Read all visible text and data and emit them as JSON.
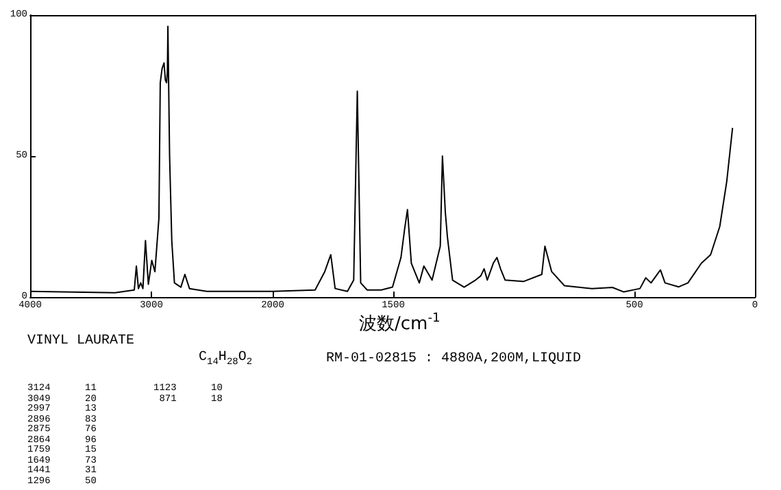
{
  "chart_data": [
    {
      "type": "line",
      "annotations": [
        "VINYL LAURATE",
        "C$_{14}$H$_{28}$O$_{2}$",
        "RM-01-02815 : 4880A,200M,LIQUID",
        "3124      11",
        "3049      20",
        "2997      13",
        "2896      83",
        "2875      76",
        "2864      96",
        "1759      15",
        "1649      73",
        "1441      31",
        "1296      50",
        "1123      10",
        " 871      18"
      ],
      "x": [
        4000,
        3300,
        3141,
        3124,
        3107,
        3088,
        3070,
        3049,
        3025,
        2997,
        2971,
        2938,
        2927,
        2912,
        2896,
        2885,
        2875,
        2868,
        2864,
        2850,
        2832,
        2810,
        2757,
        2724,
        2686,
        2543,
        2000
      ],
      "values": [
        2,
        1.5,
        2.5,
        11,
        3,
        5,
        3,
        20,
        4.5,
        13,
        9,
        28,
        76,
        81,
        83,
        77,
        76,
        80,
        96,
        50,
        20,
        5,
        3.5,
        8,
        3,
        2,
        2
      ],
      "color": "#000000",
      "xlim": [
        4000,
        2000
      ],
      "xticks": [
        4000,
        3000,
        2000
      ],
      "ylim": [
        0,
        100
      ],
      "yticks": [
        0,
        50,
        100
      ],
      "grid": false,
      "marker": "none",
      "line_style": "solid"
    },
    {
      "type": "line",
      "xlabel": "波数/cm$^{-1}$",
      "x": [
        2000,
        1824,
        1784,
        1759,
        1741,
        1690,
        1664,
        1649,
        1635,
        1608,
        1550,
        1503,
        1468,
        1453,
        1441,
        1425,
        1411,
        1392,
        1373,
        1339,
        1305,
        1296,
        1284,
        1275,
        1254,
        1206,
        1159,
        1137,
        1123,
        1110,
        1085,
        1070,
        1055,
        1036,
        960,
        884,
        871,
        843,
        790,
        676,
        591,
        544,
        477,
        453,
        431,
        392,
        373,
        316,
        278,
        222,
        184,
        146,
        117,
        93
      ],
      "values": [
        2,
        2.5,
        9,
        15,
        3,
        2,
        6,
        73,
        5,
        2.5,
        2.5,
        3.5,
        14,
        24,
        31,
        12,
        9,
        5,
        11,
        6,
        18,
        50,
        30,
        21,
        6,
        3.5,
        6,
        7.5,
        10,
        6,
        12,
        14,
        10,
        6,
        5.5,
        8,
        18,
        9,
        4,
        3,
        3.4,
        1.8,
        3,
        6.8,
        5,
        9.6,
        5,
        3.6,
        5,
        12,
        15,
        25,
        41,
        60
      ],
      "color": "#000000",
      "xlim": [
        2000,
        0
      ],
      "xticks": [
        1500,
        500,
        0
      ],
      "ylim": [
        0,
        100
      ],
      "yticks": [
        0,
        50,
        100
      ],
      "tick_labels": "x",
      "grid": false,
      "marker": "none",
      "line_style": "solid"
    }
  ]
}
